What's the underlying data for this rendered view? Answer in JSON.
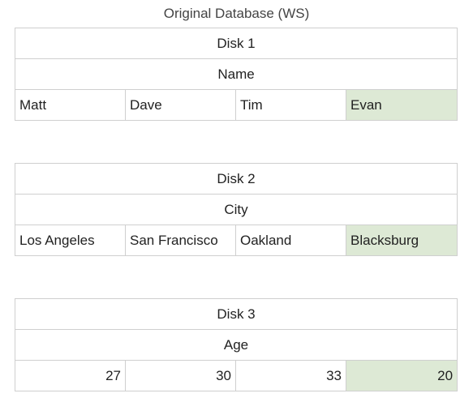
{
  "title": "Original Database (WS)",
  "highlight_color": "#dde9d5",
  "border_color": "#cfcfcf",
  "disks": [
    {
      "label": "Disk 1",
      "field": "Name",
      "values": [
        "Matt",
        "Dave",
        "Tim",
        "Evan"
      ],
      "highlighted_index": 3
    },
    {
      "label": "Disk 2",
      "field": "City",
      "values": [
        "Los Angeles",
        "San Francisco",
        "Oakland",
        "Blacksburg"
      ],
      "highlighted_index": 3
    },
    {
      "label": "Disk 3",
      "field": "Age",
      "values": [
        "27",
        "30",
        "33",
        "20"
      ],
      "highlighted_index": 3
    }
  ]
}
